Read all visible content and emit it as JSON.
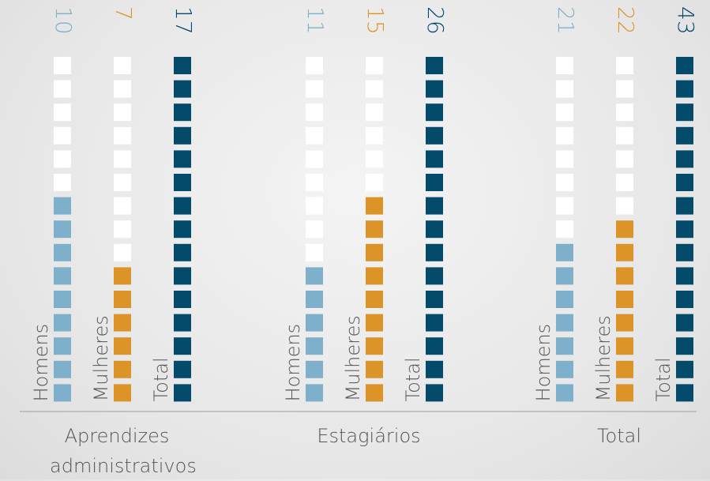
{
  "chart_data": {
    "type": "pictogram",
    "categories": [
      "Aprendizes administrativos",
      "Estagiários",
      "Total"
    ],
    "series": [
      {
        "name": "Homens",
        "color": "#7fb0cb",
        "values": [
          10,
          11,
          21
        ]
      },
      {
        "name": "Mulheres",
        "color": "#dc9429",
        "values": [
          7,
          15,
          22
        ]
      },
      {
        "name": "Total",
        "color": "#034a6b",
        "values": [
          17,
          26,
          43
        ]
      }
    ]
  }
}
